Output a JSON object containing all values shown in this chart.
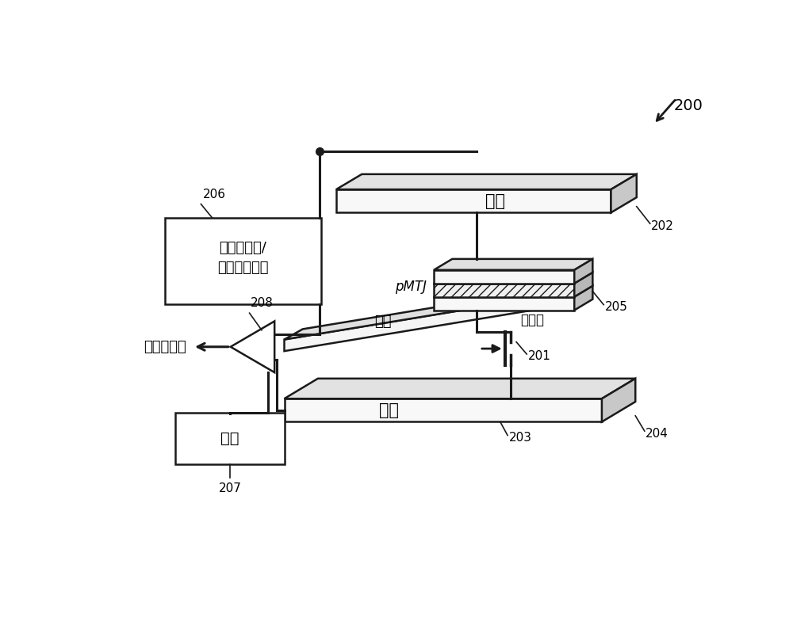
{
  "bg_color": "#ffffff",
  "line_color": "#1a1a1a",
  "title_label": "200",
  "labels": {
    "bit_line": "位线",
    "bit_line_num": "202",
    "pmtj": "pMTJ",
    "pmtj_num": "205",
    "word_line": "字线",
    "transistor": "晶体管",
    "transistor_num": "201",
    "source_line": "源线",
    "source_line_num1": "203",
    "source_line_num2": "204",
    "generator": "双极写脉冲/\n读偏置发生器",
    "generator_num": "206",
    "sense_amp": "感测放大器",
    "sense_amp_num": "208",
    "reference": "基准",
    "reference_num": "207"
  }
}
